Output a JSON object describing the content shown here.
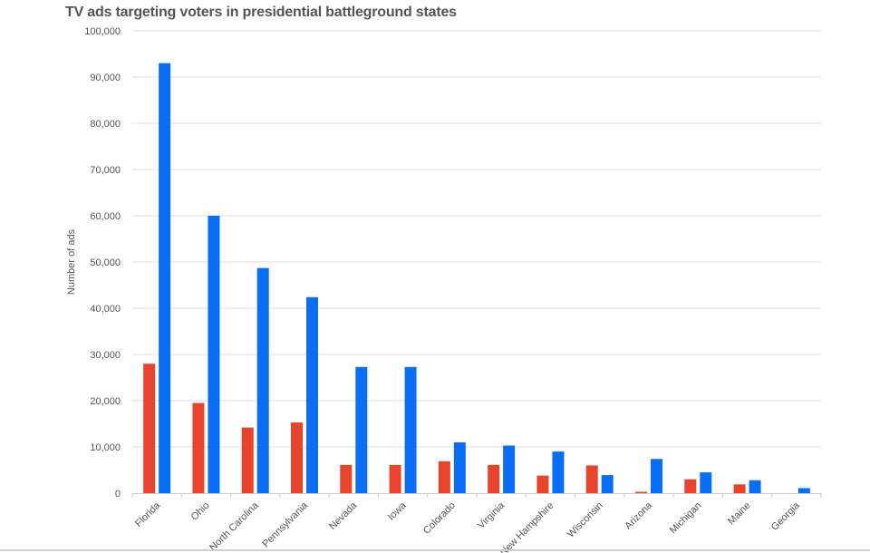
{
  "chart_data": {
    "type": "bar",
    "title": "TV ads targeting voters in presidential battleground states",
    "ylabel": "Number of ads",
    "xlabel": "",
    "ylim": [
      0,
      100000
    ],
    "yticks": [
      "0",
      "10,000",
      "20,000",
      "30,000",
      "40,000",
      "50,000",
      "60,000",
      "70,000",
      "80,000",
      "90,000",
      "100,000"
    ],
    "categories": [
      "Florida",
      "Ohio",
      "North Carolina",
      "Pennsylvania",
      "Nevada",
      "Iowa",
      "Colorado",
      "Virginia",
      "New Hampshire",
      "Wisconsin",
      "Arizona",
      "Michigan",
      "Maine",
      "Georgia"
    ],
    "series": [
      {
        "color": "#e8432d",
        "values": [
          28000,
          19500,
          14200,
          15300,
          6100,
          6100,
          6900,
          6100,
          3800,
          6000,
          300,
          3000,
          1900,
          0
        ]
      },
      {
        "color": "#0a6ef5",
        "values": [
          93000,
          60000,
          48700,
          42400,
          27300,
          27300,
          11000,
          10300,
          9000,
          3900,
          7400,
          4500,
          2800,
          1100
        ]
      }
    ],
    "grid": true,
    "legend": "none"
  }
}
